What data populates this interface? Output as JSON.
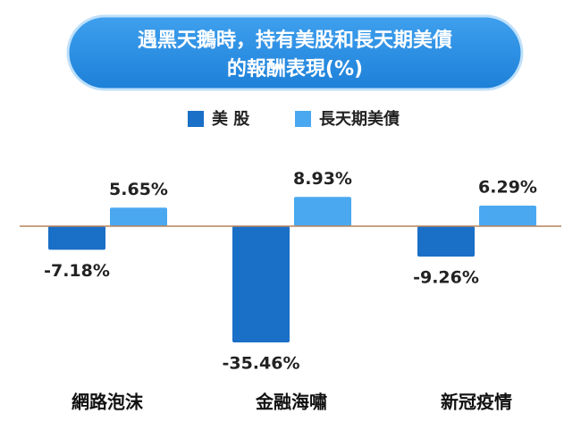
{
  "chart_data": {
    "type": "bar",
    "title": [
      "遇黑天鵝時，持有美股和長天期美債",
      "的報酬表現(%)"
    ],
    "categories": [
      "網路泡沫",
      "金融海嘯",
      "新冠疫情"
    ],
    "series": [
      {
        "name": "美 股",
        "color": "#1a6fc6",
        "values": [
          -7.18,
          -35.46,
          -9.26
        ],
        "value_labels": [
          "-7.18%",
          "-35.46%",
          "-9.26%"
        ]
      },
      {
        "name": "長天期美債",
        "color": "#4aa8f0",
        "values": [
          5.65,
          8.93,
          6.29
        ],
        "value_labels": [
          "5.65%",
          "8.93%",
          "6.29%"
        ]
      }
    ],
    "zero_line_color": "#b5835a"
  }
}
